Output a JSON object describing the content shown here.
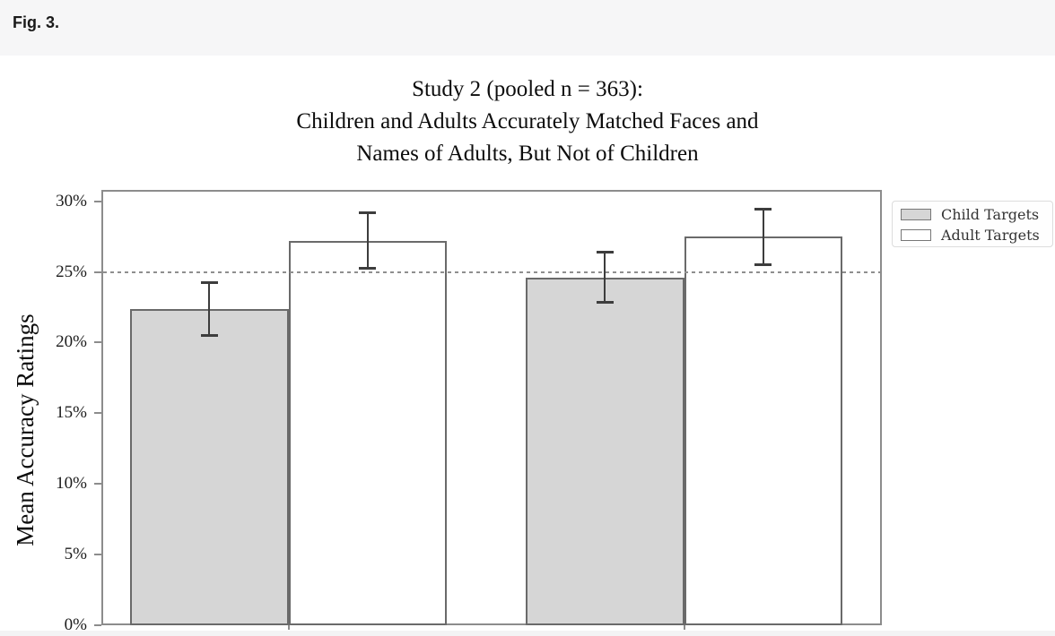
{
  "header": {
    "label": "Fig. 3."
  },
  "figure": {
    "title_lines": [
      "Study 2 (pooled n = 363):",
      "Children and Adults Accurately Matched Faces and",
      "Names of Adults, But Not of Children"
    ]
  },
  "chart_data": {
    "type": "bar",
    "title": "Study 2 (pooled n = 363):\nChildren and Adults Accurately Matched Faces and\nNames of Adults, But Not of Children",
    "ylabel": "Mean Accuracy Ratings",
    "xlabel": "",
    "categories": [
      "",
      ""
    ],
    "series": [
      {
        "name": "Child Targets",
        "values": [
          22.4,
          24.6
        ],
        "errors": [
          1.9,
          1.8
        ],
        "fill": "#d6d6d6"
      },
      {
        "name": "Adult Targets",
        "values": [
          27.2,
          27.5
        ],
        "errors": [
          2.0,
          2.0
        ],
        "fill": "#ffffff"
      }
    ],
    "ylim": [
      0,
      30.8
    ],
    "ytick_values": [
      0,
      5,
      10,
      15,
      20,
      25,
      30
    ],
    "ytick_labels": [
      "0%",
      "5%",
      "10%",
      "15%",
      "20%",
      "25%",
      "30%"
    ],
    "reference_line_y": 25,
    "reference_line_style": "dashed",
    "grid": false,
    "legend": {
      "position": "outside-upper-right",
      "entries": [
        "Child Targets",
        "Adult Targets"
      ]
    },
    "colors": {
      "child_fill": "#d6d6d6",
      "adult_fill": "#ffffff",
      "bar_border": "#6a6a6a",
      "error_bar": "#3d3d3d",
      "reference_line": "#8f8f8f",
      "plot_border": "#8c8c8c",
      "header_background": "#f6f6f7"
    }
  }
}
